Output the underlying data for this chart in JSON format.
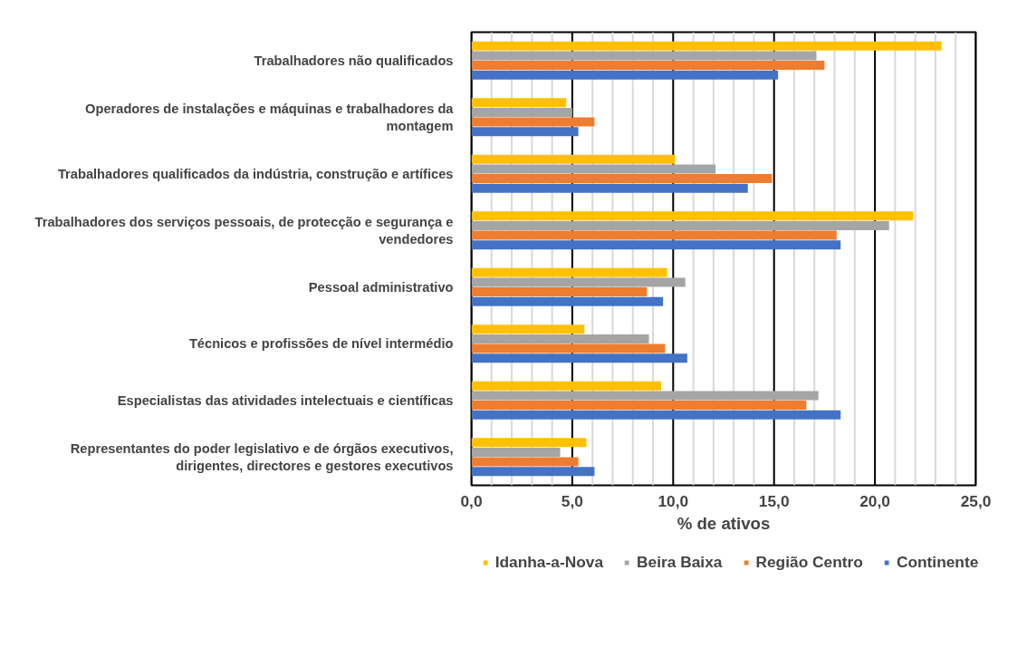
{
  "chart_data": {
    "type": "bar",
    "orientation": "horizontal",
    "xlabel": "% de ativos",
    "categories": [
      "Trabalhadores não qualificados",
      "Operadores de instalações e máquinas e trabalhadores da montagem",
      "Trabalhadores qualificados da indústria, construção e artífices",
      "Trabalhadores dos serviços pessoais, de protecção e segurança e vendedores",
      "Pessoal administrativo",
      "Técnicos e profissões de nível intermédio",
      "Especialistas das atividades intelectuais e científicas",
      "Representantes do poder legislativo e de órgãos executivos, dirigentes, directores e gestores executivos"
    ],
    "series": [
      {
        "name": "Idanha-a-Nova",
        "color": "#ffc000",
        "values": [
          23.3,
          4.7,
          10.1,
          21.9,
          9.7,
          5.6,
          9.4,
          5.7
        ]
      },
      {
        "name": "Beira Baixa",
        "color": "#a5a5a5",
        "values": [
          17.1,
          5.0,
          12.1,
          20.7,
          10.6,
          8.8,
          17.2,
          4.4
        ]
      },
      {
        "name": "Região Centro",
        "color": "#ed7d31",
        "values": [
          17.5,
          6.1,
          14.9,
          18.1,
          8.7,
          9.6,
          16.6,
          5.3
        ]
      },
      {
        "name": "Continente",
        "color": "#4472c4",
        "values": [
          15.2,
          5.3,
          13.7,
          18.3,
          9.5,
          10.7,
          18.3,
          6.1
        ]
      }
    ],
    "xlim": [
      0,
      25
    ],
    "xticks": [
      {
        "value": 0,
        "label": "0,0"
      },
      {
        "value": 1,
        "label": null
      },
      {
        "value": 2,
        "label": null
      },
      {
        "value": 3,
        "label": null
      },
      {
        "value": 4,
        "label": null
      },
      {
        "value": 5,
        "label": "5,0"
      },
      {
        "value": 6,
        "label": null
      },
      {
        "value": 7,
        "label": null
      },
      {
        "value": 8,
        "label": null
      },
      {
        "value": 9,
        "label": null
      },
      {
        "value": 10,
        "label": "10,0"
      },
      {
        "value": 11,
        "label": null
      },
      {
        "value": 12,
        "label": null
      },
      {
        "value": 13,
        "label": null
      },
      {
        "value": 14,
        "label": null
      },
      {
        "value": 15,
        "label": "15,0"
      },
      {
        "value": 16,
        "label": null
      },
      {
        "value": 17,
        "label": null
      },
      {
        "value": 18,
        "label": null
      },
      {
        "value": 19,
        "label": null
      },
      {
        "value": 20,
        "label": "20,0"
      },
      {
        "value": 21,
        "label": null
      },
      {
        "value": 22,
        "label": null
      },
      {
        "value": 23,
        "label": null
      },
      {
        "value": 24,
        "label": null
      },
      {
        "value": 25,
        "label": "25,0"
      }
    ],
    "grid": "x",
    "legend": "bottom"
  }
}
